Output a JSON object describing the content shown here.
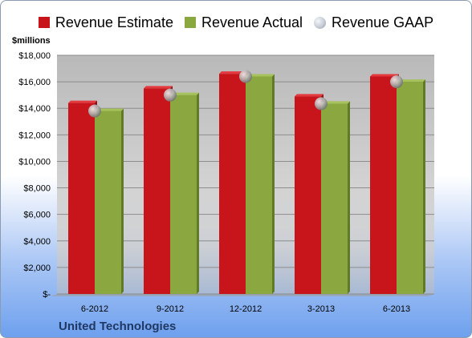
{
  "unit_label": "$millions",
  "company": "United Technologies",
  "chart_data": {
    "type": "bar",
    "categories": [
      "6-2012",
      "9-2012",
      "12-2012",
      "3-2013",
      "6-2013"
    ],
    "series": [
      {
        "name": "Revenue Estimate",
        "values": [
          14400,
          15500,
          16600,
          14900,
          16400
        ],
        "color": "#c8151b"
      },
      {
        "name": "Revenue Actual",
        "values": [
          13800,
          15000,
          16400,
          14350,
          16000
        ],
        "color": "#8aa83f"
      }
    ],
    "gaap": {
      "name": "Revenue GAAP",
      "values": [
        13800,
        15000,
        16400,
        14350,
        16000
      ]
    },
    "ylim": [
      0,
      18000
    ],
    "yticks": [
      0,
      2000,
      4000,
      6000,
      8000,
      10000,
      12000,
      14000,
      16000,
      18000
    ],
    "ytick_labels": [
      "$-",
      "$2,000",
      "$4,000",
      "$6,000",
      "$8,000",
      "$10,000",
      "$12,000",
      "$14,000",
      "$16,000",
      "$18,000"
    ],
    "grid": true,
    "legend": "top-center"
  }
}
